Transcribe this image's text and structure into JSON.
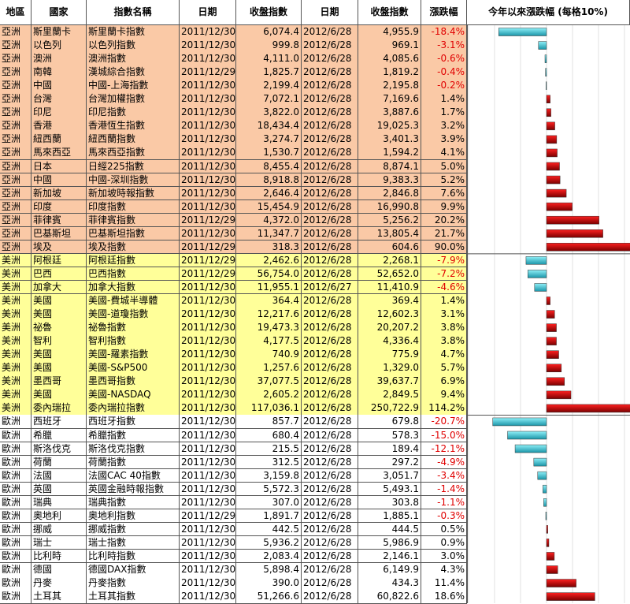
{
  "header": [
    "地區",
    "國家",
    "指數名稱",
    "日期",
    "收盤指數",
    "日期",
    "收盤指數",
    "漲跌幅",
    "今年以來漲跌幅 (每格10%)"
  ],
  "groups": [
    {
      "color": "#fac9a6",
      "rows": [
        [
          "亞洲",
          "斯里蘭卡",
          "斯里蘭卡指數",
          "2011/12/30",
          "6,074.4",
          "2012/6/28",
          "4,955.9",
          "-18.4%"
        ],
        [
          "亞洲",
          "以色列",
          "以色列指數",
          "2011/12/30",
          "999.8",
          "2012/6/28",
          "969.1",
          "-3.1%"
        ],
        [
          "亞洲",
          "澳洲",
          "澳洲指數",
          "2011/12/30",
          "4,111.0",
          "2012/6/28",
          "4,085.6",
          "-0.6%"
        ],
        [
          "亞洲",
          "南韓",
          "漢城綜合指數",
          "2011/12/29",
          "1,825.7",
          "2012/6/28",
          "1,819.2",
          "-0.4%"
        ],
        [
          "亞洲",
          "中國",
          "中國-上海指數",
          "2011/12/30",
          "2,199.4",
          "2012/6/28",
          "2,195.8",
          "-0.2%"
        ],
        [
          "亞洲",
          "台灣",
          "台灣加權指數",
          "2011/12/30",
          "7,072.1",
          "2012/6/28",
          "7,169.6",
          "1.4%"
        ],
        [
          "亞洲",
          "印尼",
          "印尼指數",
          "2011/12/30",
          "3,822.0",
          "2012/6/28",
          "3,887.6",
          "1.7%"
        ],
        [
          "亞洲",
          "香港",
          "香港恆生指數",
          "2011/12/30",
          "18,434.4",
          "2012/6/28",
          "19,025.3",
          "3.2%"
        ],
        [
          "亞洲",
          "紐西蘭",
          "紐西蘭指數",
          "2011/12/30",
          "3,274.7",
          "2012/6/28",
          "3,401.3",
          "3.9%"
        ],
        [
          "亞洲",
          "馬來西亞",
          "馬來西亞指數",
          "2011/12/30",
          "1,530.7",
          "2012/6/28",
          "1,594.2",
          "4.1%"
        ],
        [
          "亞洲",
          "日本",
          "日經225指數",
          "2011/12/30",
          "8,455.4",
          "2012/6/28",
          "8,874.1",
          "5.0%"
        ],
        [
          "亞洲",
          "中國",
          "中國-深圳指數",
          "2011/12/30",
          "8,918.8",
          "2012/6/28",
          "9,383.3",
          "5.2%"
        ],
        [
          "亞洲",
          "新加坡",
          "新加坡時報指數",
          "2011/12/30",
          "2,646.4",
          "2012/6/28",
          "2,846.8",
          "7.6%"
        ],
        [
          "亞洲",
          "印度",
          "印度指數",
          "2011/12/30",
          "15,454.9",
          "2012/6/28",
          "16,990.8",
          "9.9%"
        ],
        [
          "亞洲",
          "菲律賓",
          "菲律賓指數",
          "2011/12/29",
          "4,372.0",
          "2012/6/28",
          "5,256.2",
          "20.2%"
        ],
        [
          "亞洲",
          "巴基斯坦",
          "巴基斯坦指數",
          "2011/12/30",
          "11,347.7",
          "2012/6/28",
          "13,805.4",
          "21.7%"
        ],
        [
          "亞洲",
          "埃及",
          "埃及指數",
          "2011/12/29",
          "318.3",
          "2012/6/28",
          "604.6",
          "90.0%"
        ]
      ],
      "changes": [
        -18.4,
        -3.1,
        -0.6,
        -0.4,
        -0.2,
        1.4,
        1.7,
        3.2,
        3.9,
        4.1,
        5.0,
        5.2,
        7.6,
        9.9,
        20.2,
        21.7,
        90.0
      ]
    },
    {
      "color": "#ffff99",
      "rows": [
        [
          "美洲",
          "阿根廷",
          "阿根廷指數",
          "2011/12/29",
          "2,462.6",
          "2012/6/28",
          "2,268.1",
          "-7.9%"
        ],
        [
          "美洲",
          "巴西",
          "巴西指數",
          "2011/12/29",
          "56,754.0",
          "2012/6/28",
          "52,652.0",
          "-7.2%"
        ],
        [
          "美洲",
          "加拿大",
          "加拿大指數",
          "2011/12/30",
          "11,955.1",
          "2012/6/27",
          "11,410.9",
          "-4.6%"
        ],
        [
          "美洲",
          "美國",
          "美國-費城半導體",
          "2011/12/30",
          "364.4",
          "2012/6/28",
          "369.4",
          "1.4%"
        ],
        [
          "美洲",
          "美國",
          "美國-道瓊指數",
          "2011/12/30",
          "12,217.6",
          "2012/6/28",
          "12,602.3",
          "3.1%"
        ],
        [
          "美洲",
          "祕魯",
          "祕魯指數",
          "2011/12/30",
          "19,473.3",
          "2012/6/28",
          "20,207.2",
          "3.8%"
        ],
        [
          "美洲",
          "智利",
          "智利指數",
          "2011/12/30",
          "4,177.5",
          "2012/6/28",
          "4,336.4",
          "3.8%"
        ],
        [
          "美洲",
          "美國",
          "美國-羅素指數",
          "2011/12/30",
          "740.9",
          "2012/6/28",
          "775.9",
          "4.7%"
        ],
        [
          "美洲",
          "美國",
          "美國-S&P500",
          "2011/12/30",
          "1,257.6",
          "2012/6/28",
          "1,329.0",
          "5.7%"
        ],
        [
          "美洲",
          "墨西哥",
          "墨西哥指數",
          "2011/12/30",
          "37,077.5",
          "2012/6/28",
          "39,637.7",
          "6.9%"
        ],
        [
          "美洲",
          "美國",
          "美國-NASDAQ",
          "2011/12/30",
          "2,605.2",
          "2012/6/28",
          "2,849.5",
          "9.4%"
        ],
        [
          "美洲",
          "委內瑞拉",
          "委內瑞拉指數",
          "2011/12/30",
          "117,036.1",
          "2012/6/28",
          "250,722.9",
          "114.2%"
        ]
      ],
      "changes": [
        -7.9,
        -7.2,
        -4.6,
        1.4,
        3.1,
        3.8,
        3.8,
        4.7,
        5.7,
        6.9,
        9.4,
        114.2
      ]
    },
    {
      "color": "#ffffff",
      "rows": [
        [
          "歐洲",
          "西班牙",
          "西班牙指數",
          "2011/12/30",
          "857.7",
          "2012/6/28",
          "679.8",
          "-20.7%"
        ],
        [
          "歐洲",
          "希臘",
          "希臘指數",
          "2011/12/30",
          "680.4",
          "2012/6/28",
          "578.3",
          "-15.0%"
        ],
        [
          "歐洲",
          "斯洛伐克",
          "斯洛伐克指數",
          "2011/12/30",
          "215.5",
          "2012/6/28",
          "189.4",
          "-12.1%"
        ],
        [
          "歐洲",
          "荷蘭",
          "荷蘭指數",
          "2011/12/30",
          "312.5",
          "2012/6/28",
          "297.2",
          "-4.9%"
        ],
        [
          "歐洲",
          "法國",
          "法國CAC 40指數",
          "2011/12/30",
          "3,159.8",
          "2012/6/28",
          "3,051.7",
          "-3.4%"
        ],
        [
          "歐洲",
          "英國",
          "英國金融時報指數",
          "2011/12/30",
          "5,572.3",
          "2012/6/28",
          "5,493.1",
          "-1.4%"
        ],
        [
          "歐洲",
          "瑞典",
          "瑞典指數",
          "2011/12/30",
          "307.0",
          "2012/6/28",
          "303.8",
          "-1.1%"
        ],
        [
          "歐洲",
          "奧地利",
          "奧地利指數",
          "2011/12/29",
          "1,891.7",
          "2012/6/28",
          "1,885.1",
          "-0.3%"
        ],
        [
          "歐洲",
          "挪威",
          "挪威指數",
          "2011/12/30",
          "442.5",
          "2012/6/28",
          "444.5",
          "0.5%"
        ],
        [
          "歐洲",
          "瑞士",
          "瑞士指數",
          "2011/12/30",
          "5,936.2",
          "2012/6/28",
          "5,986.9",
          "0.9%"
        ],
        [
          "歐洲",
          "比利時",
          "比利時指數",
          "2011/12/30",
          "2,083.4",
          "2012/6/28",
          "2,146.1",
          "3.0%"
        ],
        [
          "歐洲",
          "德國",
          "德國DAX指數",
          "2011/12/30",
          "5,898.4",
          "2012/6/28",
          "6,149.9",
          "4.3%"
        ],
        [
          "歐洲",
          "丹麥",
          "丹麥指數",
          "2011/12/30",
          "390.0",
          "2012/6/28",
          "434.3",
          "11.4%"
        ],
        [
          "歐洲",
          "土耳其",
          "土耳其指數",
          "2011/12/30",
          "51,266.6",
          "2012/6/28",
          "60,822.6",
          "18.6%"
        ]
      ],
      "changes": [
        -20.7,
        -15.0,
        -12.1,
        -4.9,
        -3.4,
        -1.4,
        -1.1,
        -0.3,
        0.5,
        0.9,
        3.0,
        4.3,
        11.4,
        18.6
      ]
    }
  ]
}
